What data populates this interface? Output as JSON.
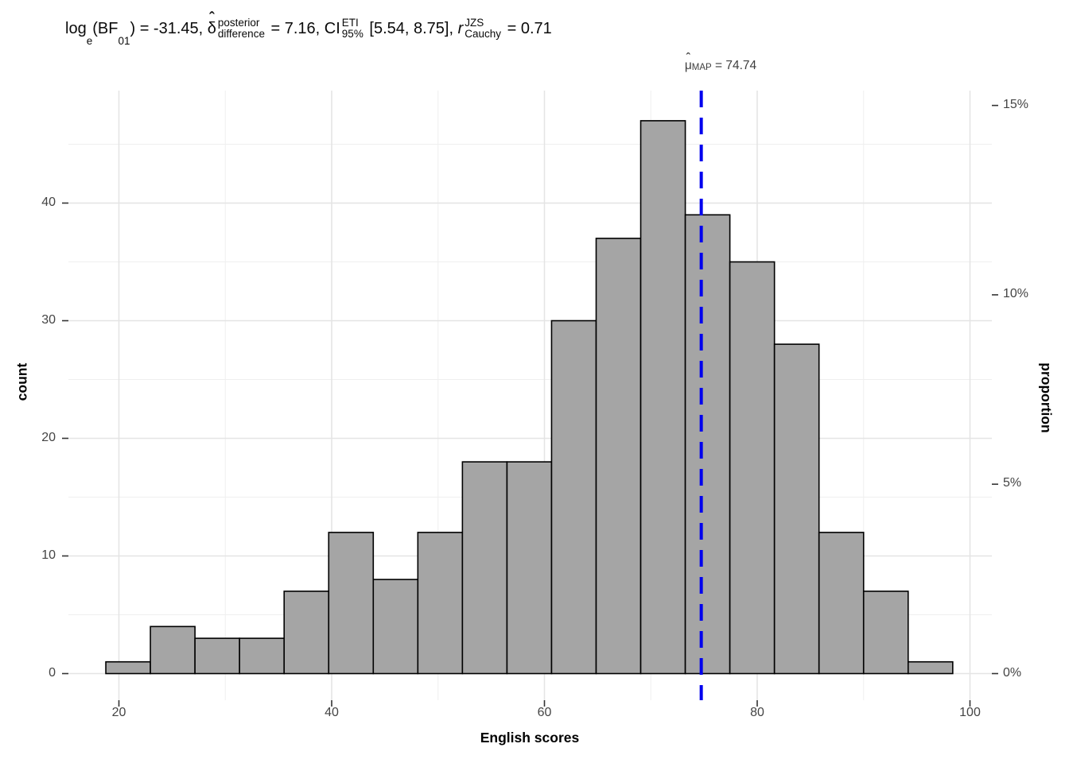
{
  "title": {
    "parts": {
      "log": "log",
      "log_sub": "e",
      "bf_open": "(BF",
      "bf_sub": "01",
      "bf_close": ")",
      "eq1": " = -31.45, ",
      "delta": "δ",
      "delta_hat": "ˆ",
      "delta_sup": "posterior",
      "delta_sub": "difference",
      "eq2": " = 7.16, ",
      "ci": "CI",
      "ci_sup": "ETI",
      "ci_sub": "95%",
      "interval": " [5.54, 8.75], ",
      "r": "r",
      "r_sup": "JZS",
      "r_sub": "Cauchy",
      "eq3": " = 0.71"
    }
  },
  "annotation": {
    "hat": "ˆ",
    "mu": "μ",
    "sub": "MAP",
    "value": " = 74.74"
  },
  "axes": {
    "x": {
      "title": "English scores",
      "tick_values": [
        20,
        40,
        60,
        80,
        100
      ],
      "tick_labels": [
        "20",
        "40",
        "60",
        "80",
        "100"
      ],
      "minor_values": [
        30,
        50,
        70,
        90
      ]
    },
    "y_left": {
      "title": "count",
      "tick_values": [
        0,
        10,
        20,
        30,
        40
      ],
      "tick_labels": [
        "0",
        "10",
        "20",
        "30",
        "40"
      ],
      "minor_values": [
        5,
        15,
        25,
        35,
        45
      ]
    },
    "y_right": {
      "title": "proportion",
      "tick_values": [
        0,
        5,
        10,
        15
      ],
      "tick_labels": [
        "0%",
        "5%",
        "10%",
        "15%"
      ]
    }
  },
  "chart_data": {
    "type": "bar",
    "subtype": "histogram",
    "xlabel": "English scores",
    "ylabel_left": "count",
    "ylabel_right": "proportion",
    "bin_start": 18.77,
    "bin_width": 4.19,
    "bin_edges_approx": [
      18.8,
      23.0,
      27.1,
      31.3,
      35.5,
      39.7,
      43.9,
      48.1,
      52.3,
      56.5,
      60.6,
      64.8,
      69.0,
      73.2,
      77.4,
      81.6,
      85.8,
      89.9,
      94.1,
      98.3
    ],
    "counts": [
      1,
      4,
      3,
      3,
      7,
      12,
      8,
      12,
      18,
      18,
      30,
      37,
      47,
      39,
      35,
      28,
      12,
      7,
      1
    ],
    "total_n": 322,
    "xlim": [
      15.3,
      102.1
    ],
    "ylim_counts": [
      -2.3,
      49.7
    ],
    "grid": "major-and-minor",
    "vline": {
      "x": 74.74,
      "label": "μ̂ MAP = 74.74"
    }
  },
  "colors": {
    "bar_fill": "#a5a5a5",
    "bar_stroke": "#000000",
    "vline_blue": "#0000ee",
    "grid_major": "#e4e4e4",
    "grid_minor": "#efefef",
    "tick_mark": "#333333",
    "tick_label": "#444444",
    "annotation_text": "#3e3e3e",
    "background": "#ffffff"
  }
}
